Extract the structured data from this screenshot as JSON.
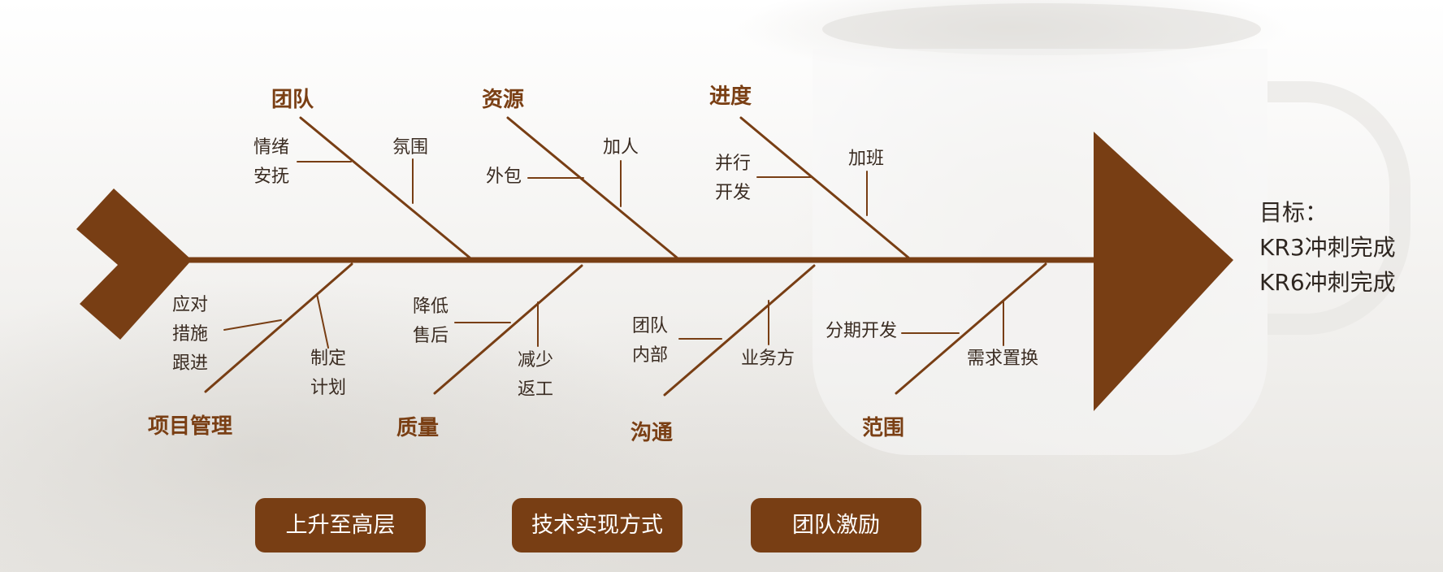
{
  "colors": {
    "accent": "#783e14",
    "text": "#3a2c22"
  },
  "goal": {
    "title": "目标：",
    "lines": [
      "KR3冲刺完成",
      "KR6冲刺完成"
    ]
  },
  "top_categories": [
    {
      "label": "团队",
      "causes": [
        "情绪\n安抚",
        "氛围"
      ]
    },
    {
      "label": "资源",
      "causes": [
        "外包",
        "加人"
      ]
    },
    {
      "label": "进度",
      "causes": [
        "并行\n开发",
        "加班"
      ]
    }
  ],
  "bottom_categories": [
    {
      "label": "项目管理",
      "causes": [
        "应对\n措施\n跟进",
        "制定\n计划"
      ]
    },
    {
      "label": "质量",
      "causes": [
        "降低\n售后",
        "减少\n返工"
      ]
    },
    {
      "label": "沟通",
      "causes": [
        "团队\n内部",
        "业务方"
      ]
    },
    {
      "label": "范围",
      "causes": [
        "分期开发",
        "需求置换"
      ]
    }
  ],
  "actions": [
    "上升至高层",
    "技术实现方式",
    "团队激励"
  ]
}
